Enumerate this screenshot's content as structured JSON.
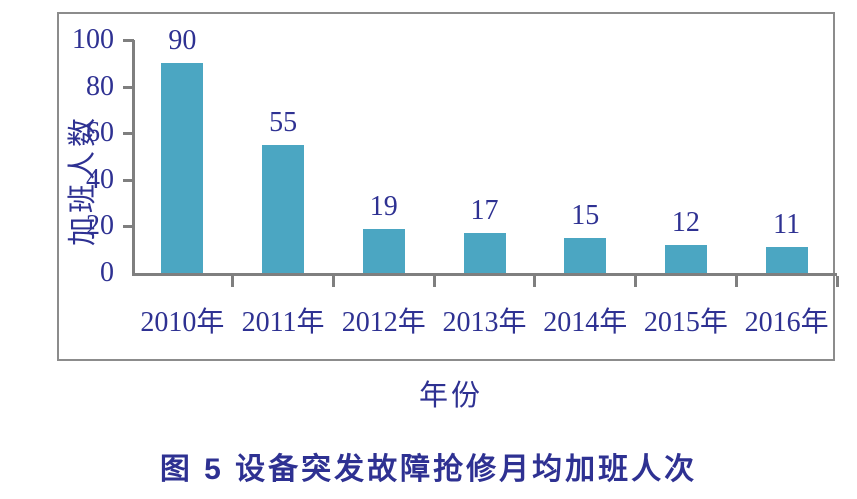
{
  "chart_data": {
    "type": "bar",
    "categories": [
      "2010年",
      "2011年",
      "2012年",
      "2013年",
      "2014年",
      "2015年",
      "2016年"
    ],
    "values": [
      90,
      55,
      19,
      17,
      15,
      12,
      11
    ],
    "title": "图 5  设备突发故障抢修月均加班人次",
    "xlabel": "年份",
    "ylabel": "加班人数",
    "ylim": [
      0,
      100
    ],
    "yticks": [
      0,
      20,
      40,
      60,
      80,
      100
    ],
    "grid": false,
    "legend": "none",
    "bar_color": "#4ba6c2",
    "text_color": "#2e3192",
    "axis_color": "#7f7f7f",
    "frame_color": "#8c8c8c"
  }
}
